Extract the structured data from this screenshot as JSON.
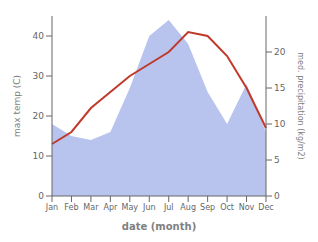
{
  "chart_data": {
    "type": "line",
    "categories": [
      "Jan",
      "Feb",
      "Mar",
      "Apr",
      "May",
      "Jun",
      "Jul",
      "Aug",
      "Sep",
      "Oct",
      "Nov",
      "Dec"
    ],
    "series": [
      {
        "type": "area",
        "color": "#b8c4ee",
        "values": [
          18,
          15,
          14,
          16,
          27,
          40,
          44,
          38,
          26,
          18,
          28,
          16
        ]
      },
      {
        "type": "line",
        "color": "#c0392b",
        "values": [
          13,
          16,
          22,
          26,
          30,
          33,
          36,
          41,
          40,
          35,
          27,
          17
        ]
      }
    ],
    "ylim": [
      0,
      45
    ],
    "yticks": [
      0,
      10,
      20,
      30,
      40
    ],
    "y2lim": [
      0,
      25
    ],
    "y2ticks": [
      0,
      5,
      10,
      15,
      20
    ],
    "ylabel": "max temp (C)",
    "y2label": "med. precipitation (kg/m2)",
    "xlabel": "date (month)"
  }
}
